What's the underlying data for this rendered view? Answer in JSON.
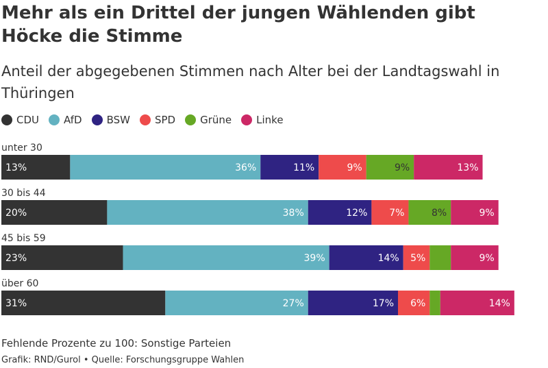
{
  "header": {
    "title": "Mehr als ein Drittel der jungen Wählenden gibt Höcke die Stimme",
    "subtitle": "Anteil der abgegebenen Stimmen nach Alter bei der Landtagswahl in Thüringen"
  },
  "footer": {
    "note": "Fehlende Prozente zu 100: Sonstige Parteien",
    "credit": "Grafik: RND/Gurol • Quelle: Forschungsgruppe Wahlen"
  },
  "chart_data": {
    "type": "bar",
    "orientation": "horizontal",
    "stacked": true,
    "title": "Mehr als ein Drittel der jungen Wählenden gibt Höcke die Stimme",
    "subtitle": "Anteil der abgegebenen Stimmen nach Alter bei der Landtagswahl in Thüringen",
    "unit": "%",
    "xlim": [
      0,
      100
    ],
    "legend_position": "top-left",
    "categories": [
      "unter 30",
      "30 bis 44",
      "45 bis 59",
      "über 60"
    ],
    "series": [
      {
        "name": "CDU",
        "color": "#333333",
        "label_color": "#ffffff",
        "values": [
          13,
          20,
          23,
          31
        ],
        "labels": [
          "13%",
          "20%",
          "23%",
          "31%"
        ]
      },
      {
        "name": "AfD",
        "color": "#63b2c1",
        "label_color": "#ffffff",
        "values": [
          36,
          38,
          39,
          27
        ],
        "labels": [
          "36%",
          "38%",
          "39%",
          "27%"
        ]
      },
      {
        "name": "BSW",
        "color": "#2f2382",
        "label_color": "#ffffff",
        "values": [
          11,
          12,
          14,
          17
        ],
        "labels": [
          "11%",
          "12%",
          "14%",
          "17%"
        ]
      },
      {
        "name": "SPD",
        "color": "#ee4b4b",
        "label_color": "#ffffff",
        "values": [
          9,
          7,
          5,
          6
        ],
        "labels": [
          "9%",
          "7%",
          "5%",
          "6%"
        ]
      },
      {
        "name": "Grüne",
        "color": "#66a825",
        "label_color": "#333333",
        "values": [
          9,
          8,
          4,
          2
        ],
        "labels": [
          "9%",
          "8%",
          "",
          ""
        ]
      },
      {
        "name": "Linke",
        "color": "#cc2866",
        "label_color": "#ffffff",
        "values": [
          13,
          9,
          9,
          14
        ],
        "labels": [
          "13%",
          "9%",
          "9%",
          "14%"
        ]
      }
    ]
  }
}
